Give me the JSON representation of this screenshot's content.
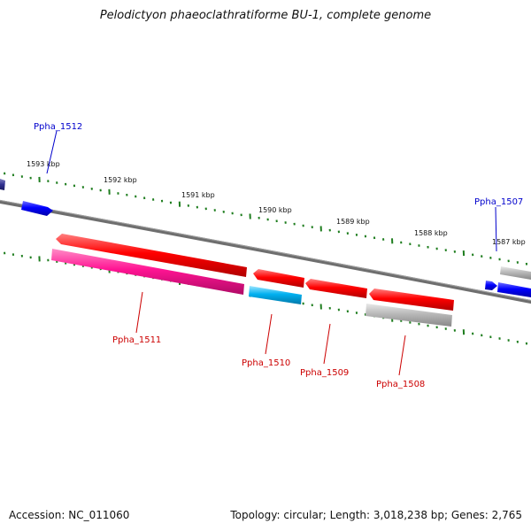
{
  "title": "Pelodictyon phaeoclathratiforme BU-1, complete genome",
  "footer": {
    "accession": "Accession: NC_011060",
    "summary": "Topology: circular; Length: 3,018,238 bp; Genes: 2,765"
  },
  "ticks": [
    {
      "label": "1593 kbp"
    },
    {
      "label": "1592 kbp"
    },
    {
      "label": "1591 kbp"
    },
    {
      "label": "1590 kbp"
    },
    {
      "label": "1589 kbp"
    },
    {
      "label": "1588 kbp"
    },
    {
      "label": "1587 kbp"
    }
  ],
  "genes": [
    {
      "name": "Ppha_1512",
      "strand": "+",
      "color": "#0000ff"
    },
    {
      "name": "Ppha_1511",
      "strand": "-",
      "color": "#ff1493"
    },
    {
      "name": "Ppha_1510",
      "strand": "-",
      "color": "#00a0e0"
    },
    {
      "name": "Ppha_1509",
      "strand": "-",
      "color": "#ff0000"
    },
    {
      "name": "Ppha_1508",
      "strand": "-",
      "color": "#ff0000"
    },
    {
      "name": "Ppha_1507",
      "strand": "+",
      "color": "#0000ff"
    }
  ],
  "colors": {
    "backbone": "#7a7a7a",
    "tick": "#1e7d1e",
    "cds_red": "#ff0000",
    "cds_gray": "#b0b0b0",
    "label_plus": "#0000cc",
    "label_minus": "#cc0000"
  }
}
